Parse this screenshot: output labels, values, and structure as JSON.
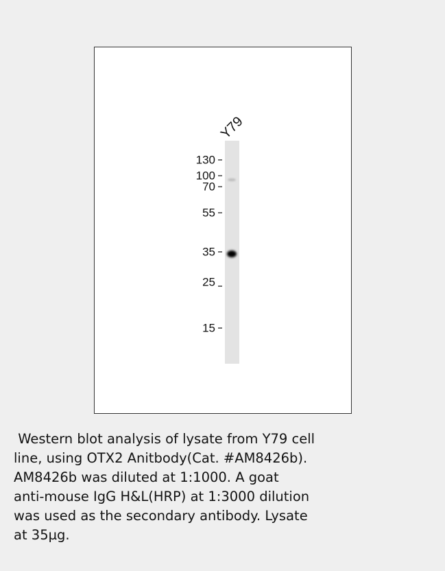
{
  "blot": {
    "lane_label": "Y79",
    "markers": [
      "130",
      "100",
      "70",
      "55",
      "35",
      "25",
      "15"
    ]
  },
  "caption": {
    "lines": [
      " Western blot analysis of lysate from Y79 cell",
      "line, using OTX2 Anitbody(Cat. #AM8426b).",
      "AM8426b was diluted at 1:1000. A goat",
      "anti-mouse IgG H&L(HRP) at 1:3000 dilution",
      "was used as the secondary antibody. Lysate",
      "at 35µg."
    ]
  }
}
